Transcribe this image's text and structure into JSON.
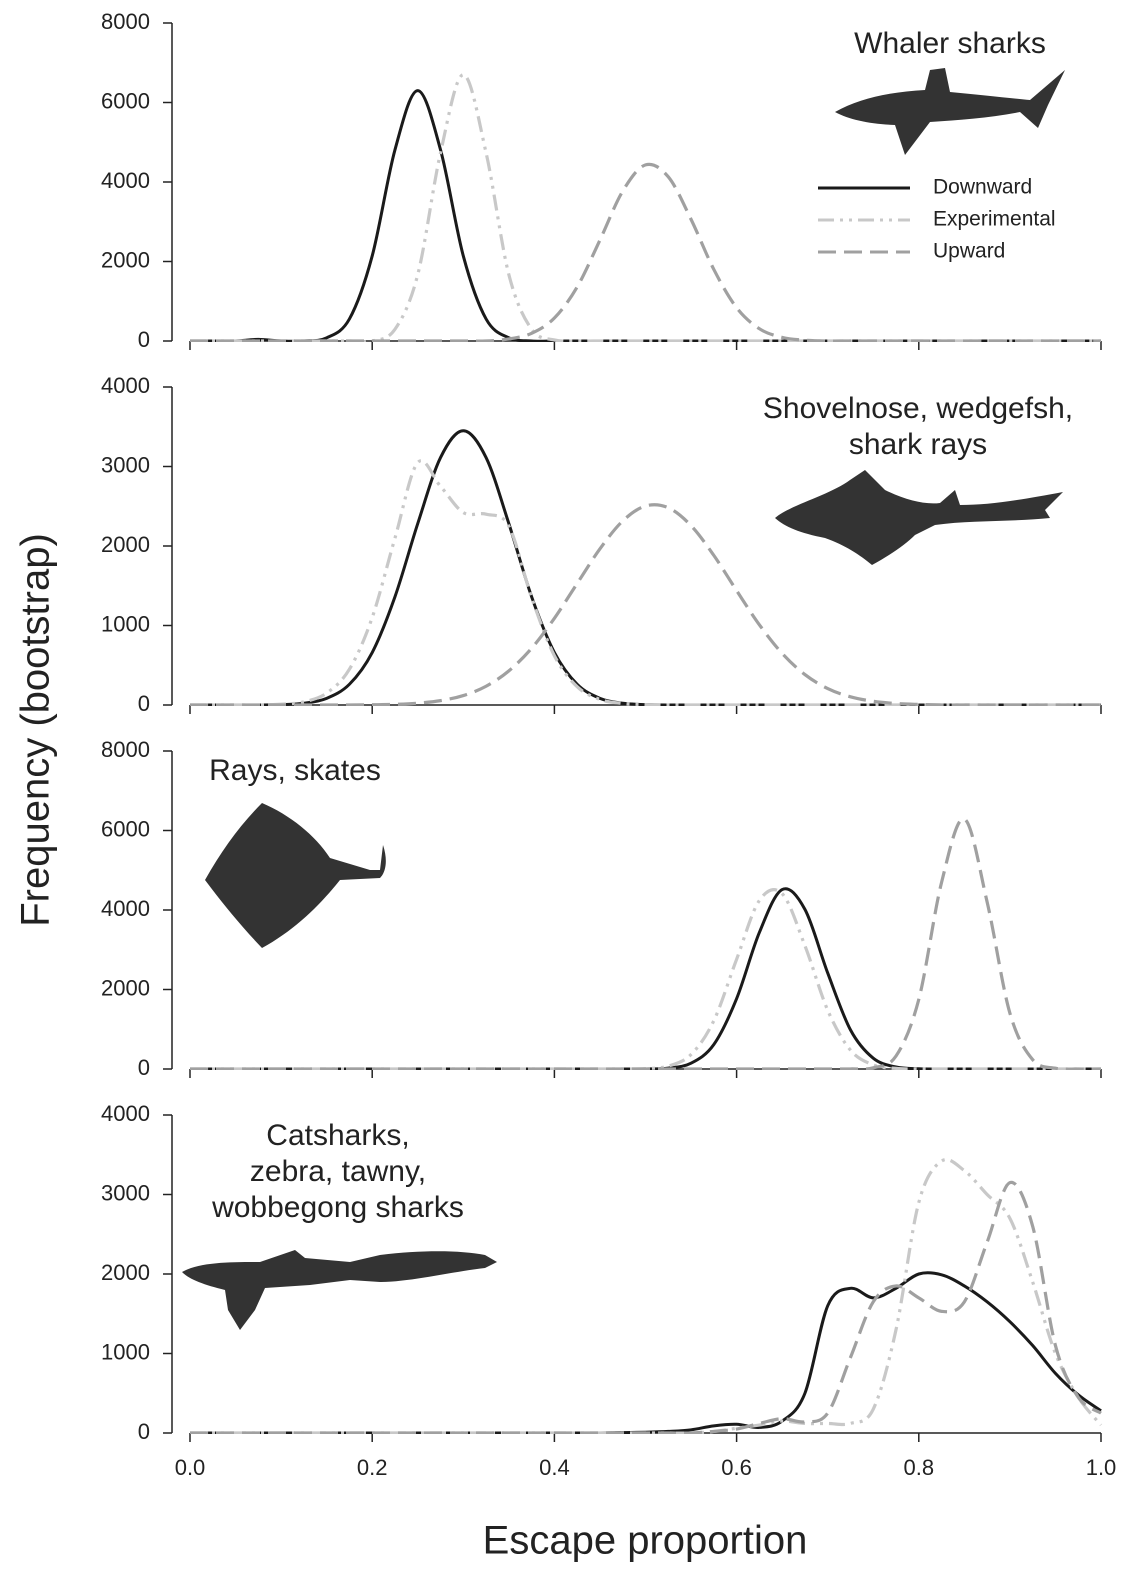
{
  "xlabel": "Escape proportion",
  "ylabel": "Frequency (bootstrap)",
  "chart_data": [
    {
      "type": "line",
      "title": [
        "Whaler sharks"
      ],
      "legend": "upper right",
      "x": [
        0,
        0.025,
        0.05,
        0.075,
        0.1,
        0.125,
        0.15,
        0.175,
        0.2,
        0.225,
        0.25,
        0.275,
        0.3,
        0.325,
        0.35,
        0.375,
        0.4,
        0.425,
        0.45,
        0.475,
        0.5,
        0.525,
        0.55,
        0.575,
        0.6,
        0.625,
        0.65,
        0.675,
        0.7,
        0.725,
        0.75,
        0.775,
        0.8,
        0.825,
        0.85,
        0.875,
        0.9,
        0.925,
        0.95,
        0.975,
        1
      ],
      "xlim": [
        0,
        1
      ],
      "xticks": [
        0,
        0.2,
        0.4,
        0.6,
        0.8,
        1
      ],
      "ylim": [
        0,
        8000
      ],
      "yticks": [
        0,
        2000,
        4000,
        6000,
        8000
      ],
      "series": [
        {
          "name": "Downward",
          "color": "#1a1a1a",
          "linestyle": "solid",
          "values": [
            0,
            0,
            0,
            40,
            0,
            0,
            80,
            555,
            2140,
            4810,
            6300,
            4810,
            2140,
            555,
            80,
            0,
            0,
            0,
            0,
            0,
            0,
            0,
            0,
            0,
            0,
            0,
            0,
            0,
            0,
            0,
            0,
            0,
            0,
            0,
            0,
            0,
            0,
            0,
            0,
            0,
            0
          ]
        },
        {
          "name": "Experimental",
          "color": "#c8c8c8",
          "linestyle": "dashdotdot",
          "values": [
            0,
            0,
            0,
            0,
            0,
            0,
            0,
            0,
            0,
            295,
            1670,
            4735,
            6700,
            4735,
            1670,
            295,
            26,
            0,
            0,
            0,
            0,
            0,
            0,
            0,
            0,
            0,
            0,
            0,
            0,
            0,
            0,
            0,
            0,
            0,
            0,
            0,
            0,
            0,
            0,
            0,
            0
          ]
        },
        {
          "name": "Upward",
          "color": "#a0a0a0",
          "linestyle": "dashed",
          "values": [
            0,
            0,
            0,
            0,
            0,
            0,
            0,
            0,
            0,
            0,
            0,
            0,
            0,
            0,
            52,
            194,
            578,
            1360,
            2540,
            3770,
            4430,
            4130,
            3060,
            1800,
            837,
            309,
            91,
            20,
            0,
            0,
            0,
            0,
            0,
            0,
            0,
            0,
            0,
            0,
            0,
            0,
            0
          ]
        }
      ]
    },
    {
      "type": "line",
      "title": [
        "Shovelnose, wedgefsh,",
        "shark rays"
      ],
      "x": [
        0,
        0.025,
        0.05,
        0.075,
        0.1,
        0.125,
        0.15,
        0.175,
        0.2,
        0.225,
        0.25,
        0.275,
        0.3,
        0.325,
        0.35,
        0.375,
        0.4,
        0.425,
        0.45,
        0.475,
        0.5,
        0.525,
        0.55,
        0.575,
        0.6,
        0.625,
        0.65,
        0.675,
        0.7,
        0.725,
        0.75,
        0.775,
        0.8,
        0.825,
        0.85,
        0.875,
        0.9,
        0.925,
        0.95,
        0.975,
        1
      ],
      "xlim": [
        0,
        1
      ],
      "xticks": [
        0,
        0.2,
        0.4,
        0.6,
        0.8,
        1
      ],
      "ylim": [
        0,
        4000
      ],
      "yticks": [
        0,
        1000,
        2000,
        3000,
        4000
      ],
      "series": [
        {
          "color": "#1a1a1a",
          "linestyle": "solid",
          "values": [
            0,
            0,
            0,
            0,
            5,
            22,
            84,
            261,
            660,
            1362,
            2282,
            3112,
            3450,
            3112,
            2282,
            1362,
            660,
            261,
            84,
            22,
            5,
            0,
            0,
            0,
            0,
            0,
            0,
            0,
            0,
            0,
            0,
            0,
            0,
            0,
            0,
            0,
            0,
            0,
            0,
            0,
            0
          ]
        },
        {
          "color": "#c8c8c8",
          "linestyle": "dashdotdot",
          "values": [
            0,
            0,
            0,
            0,
            10,
            40,
            150,
            450,
            1100,
            2100,
            3050,
            2750,
            2420,
            2400,
            2250,
            1350,
            620,
            230,
            70,
            20,
            5,
            0,
            0,
            0,
            0,
            0,
            0,
            0,
            0,
            0,
            0,
            0,
            0,
            0,
            0,
            0,
            0,
            0,
            0,
            0,
            0
          ]
        },
        {
          "color": "#a0a0a0",
          "linestyle": "dashed",
          "values": [
            0,
            0,
            0,
            0,
            0,
            0,
            0,
            0,
            3,
            8,
            23,
            55,
            119,
            236,
            429,
            714,
            1091,
            1529,
            1964,
            2315,
            2503,
            2481,
            2256,
            1882,
            1439,
            1009,
            649,
            383,
            207,
            103,
            47,
            19,
            7,
            0,
            0,
            0,
            0,
            0,
            0,
            0,
            0
          ]
        }
      ]
    },
    {
      "type": "line",
      "title": [
        "Rays, skates"
      ],
      "x": [
        0,
        0.025,
        0.05,
        0.075,
        0.1,
        0.125,
        0.15,
        0.175,
        0.2,
        0.225,
        0.25,
        0.275,
        0.3,
        0.325,
        0.35,
        0.375,
        0.4,
        0.425,
        0.45,
        0.475,
        0.5,
        0.525,
        0.55,
        0.575,
        0.6,
        0.625,
        0.65,
        0.675,
        0.7,
        0.725,
        0.75,
        0.775,
        0.8,
        0.825,
        0.85,
        0.875,
        0.9,
        0.925,
        0.95,
        0.975,
        1
      ],
      "xlim": [
        0,
        1
      ],
      "xticks": [
        0,
        0.2,
        0.4,
        0.6,
        0.8,
        1
      ],
      "ylim": [
        0,
        8000
      ],
      "yticks": [
        0,
        2000,
        4000,
        6000,
        8000
      ],
      "series": [
        {
          "color": "#1a1a1a",
          "linestyle": "solid",
          "values": [
            0,
            0,
            0,
            0,
            0,
            0,
            0,
            0,
            0,
            0,
            0,
            0,
            0,
            0,
            0,
            0,
            0,
            0,
            0,
            0,
            0,
            23,
            146,
            616,
            1769,
            3435,
            4514,
            4015,
            2416,
            984,
            272,
            50,
            5,
            0,
            0,
            0,
            0,
            0,
            0,
            0,
            0
          ]
        },
        {
          "color": "#c8c8c8",
          "linestyle": "dashdotdot",
          "values": [
            0,
            0,
            0,
            0,
            0,
            0,
            0,
            0,
            0,
            0,
            0,
            0,
            0,
            0,
            0,
            0,
            0,
            0,
            0,
            0,
            10,
            73,
            364,
            1215,
            2760,
            4240,
            4410,
            3103,
            1478,
            474,
            104,
            15,
            0,
            0,
            0,
            0,
            0,
            0,
            0,
            0,
            0
          ]
        },
        {
          "color": "#a0a0a0",
          "linestyle": "dashed",
          "values": [
            0,
            0,
            0,
            0,
            0,
            0,
            0,
            0,
            0,
            0,
            0,
            0,
            0,
            0,
            0,
            0,
            0,
            0,
            0,
            0,
            0,
            0,
            0,
            0,
            0,
            0,
            0,
            0,
            0,
            2,
            30,
            326,
            1752,
            4695,
            6290,
            4202,
            1405,
            234,
            19,
            0,
            0
          ]
        }
      ]
    },
    {
      "type": "line",
      "title": [
        "Catsharks,",
        "zebra, tawny,",
        "wobbegong sharks"
      ],
      "x": [
        0,
        0.025,
        0.05,
        0.075,
        0.1,
        0.125,
        0.15,
        0.175,
        0.2,
        0.225,
        0.25,
        0.275,
        0.3,
        0.325,
        0.35,
        0.375,
        0.4,
        0.425,
        0.45,
        0.475,
        0.5,
        0.525,
        0.55,
        0.575,
        0.6,
        0.625,
        0.65,
        0.675,
        0.7,
        0.725,
        0.75,
        0.775,
        0.8,
        0.825,
        0.85,
        0.875,
        0.9,
        0.925,
        0.95,
        0.975,
        1
      ],
      "xlim": [
        0,
        1
      ],
      "xticks": [
        {
          "value": 0,
          "label": "0.0"
        },
        0.2,
        0.4,
        0.6,
        0.8,
        {
          "value": 1,
          "label": "1.0"
        }
      ],
      "ylim": [
        0,
        4000
      ],
      "yticks": [
        0,
        1000,
        2000,
        3000,
        4000
      ],
      "series": [
        {
          "color": "#1a1a1a",
          "linestyle": "solid",
          "values": [
            0,
            0,
            0,
            0,
            0,
            0,
            0,
            0,
            0,
            0,
            0,
            0,
            0,
            0,
            0,
            0,
            0,
            0,
            0,
            5,
            10,
            20,
            40,
            90,
            110,
            70,
            150,
            500,
            1600,
            1820,
            1700,
            1820,
            2000,
            1990,
            1850,
            1650,
            1400,
            1100,
            750,
            480,
            280
          ]
        },
        {
          "color": "#c8c8c8",
          "linestyle": "dashdotdot",
          "values": [
            0,
            0,
            0,
            0,
            0,
            0,
            0,
            0,
            0,
            0,
            0,
            0,
            0,
            0,
            0,
            0,
            0,
            0,
            0,
            0,
            0,
            0,
            0,
            20,
            60,
            100,
            150,
            120,
            120,
            120,
            300,
            1300,
            2900,
            3420,
            3300,
            3000,
            2700,
            1900,
            1000,
            450,
            100
          ]
        },
        {
          "color": "#a0a0a0",
          "linestyle": "dashed",
          "values": [
            0,
            0,
            0,
            0,
            0,
            0,
            0,
            0,
            0,
            0,
            0,
            0,
            0,
            0,
            0,
            0,
            0,
            0,
            0,
            0,
            0,
            0,
            0,
            20,
            50,
            120,
            180,
            140,
            250,
            950,
            1650,
            1850,
            1700,
            1530,
            1650,
            2400,
            3150,
            2600,
            1100,
            450,
            250
          ]
        }
      ]
    }
  ]
}
